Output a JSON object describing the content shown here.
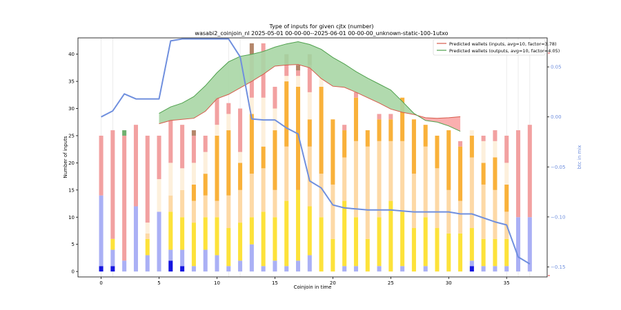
{
  "chart_data": {
    "type": "bar",
    "title": "Type of inputs for given cjtx (number)",
    "subtitle": "wasabi2_coinjoin_nl 2025-05-01 00-00-00--2025-06-01 00-00-00_unknown-static-100-1utxo",
    "xlabel": "Coinjoin in time",
    "ylabel": "Number of inputs",
    "ylabel_right": "btc in mix",
    "xlim": [
      -2,
      38.5
    ],
    "ylim": [
      -1,
      43
    ],
    "ylim_right": [
      -0.16,
      0.079
    ],
    "x_ticks": [
      0,
      5,
      10,
      15,
      20,
      25,
      30,
      35
    ],
    "y_ticks": [
      0,
      5,
      10,
      15,
      20,
      25,
      30,
      35,
      40
    ],
    "y_ticks_right": [
      -0.15,
      -0.1,
      -0.05,
      0.0,
      0.05
    ],
    "y_tick_labels_right": [
      "−0.15",
      "−0.10",
      "−0.05",
      "0.00",
      "0.05"
    ],
    "legend_position": "top-right",
    "grid": "vertical lines at selected coinjoins",
    "colors": {
      "blue_dark": "#1515e0",
      "blue_light": "#aab0f5",
      "yellow": "#fde23a",
      "peach": "#fdd9a6",
      "orange": "#f9b13a",
      "cream": "#fdf0dc",
      "pink": "#f2a1a1",
      "green_bar": "#6fb06f",
      "brown_bar": "#b4866a",
      "line_blue": "#6f8fde",
      "band_green": "#a9d6a5",
      "band_green_edge": "#4ea04c",
      "band_red": "#f9a6a6",
      "band_red_edge": "#d65a4a"
    },
    "stack_order": [
      "blue_dark",
      "blue_light",
      "yellow",
      "peach",
      "orange",
      "cream",
      "pink",
      "green_bar",
      "brown_bar"
    ],
    "bars": [
      {
        "x": 0,
        "s": [
          1,
          13,
          0,
          0,
          0,
          0,
          11,
          0,
          0
        ]
      },
      {
        "x": 1,
        "s": [
          1,
          3,
          2,
          0,
          0,
          0,
          20,
          0,
          0
        ]
      },
      {
        "x": 2,
        "s": [
          0,
          2,
          0,
          0,
          0,
          0,
          23,
          1,
          0
        ]
      },
      {
        "x": 3,
        "s": [
          0,
          12,
          0,
          0,
          0,
          0,
          15,
          0,
          0
        ]
      },
      {
        "x": 4,
        "s": [
          0,
          3,
          3,
          1,
          0,
          2,
          16,
          0,
          0
        ]
      },
      {
        "x": 5,
        "s": [
          0,
          11,
          0,
          0,
          0,
          6,
          8,
          0,
          0
        ]
      },
      {
        "x": 6,
        "s": [
          2,
          2,
          7,
          3,
          0,
          6,
          8,
          0,
          0
        ]
      },
      {
        "x": 7,
        "s": [
          1,
          3,
          6,
          5,
          0,
          4,
          8,
          0,
          0
        ]
      },
      {
        "x": 8,
        "s": [
          0,
          1,
          8,
          4,
          3,
          4,
          5,
          0,
          1
        ]
      },
      {
        "x": 9,
        "s": [
          0,
          4,
          6,
          4,
          4,
          4,
          3,
          0,
          0
        ]
      },
      {
        "x": 10,
        "s": [
          0,
          3,
          7,
          3,
          12,
          2,
          5,
          0,
          0
        ]
      },
      {
        "x": 11,
        "s": [
          0,
          1,
          7,
          6,
          12,
          3,
          2,
          0,
          0
        ]
      },
      {
        "x": 12,
        "s": [
          0,
          2,
          7,
          6,
          5,
          2,
          8,
          0,
          0
        ]
      },
      {
        "x": 13,
        "s": [
          0,
          5,
          5,
          8,
          11,
          3,
          8,
          0,
          2
        ]
      },
      {
        "x": 14,
        "s": [
          0,
          1,
          10,
          8,
          4,
          9,
          10,
          0,
          0
        ]
      },
      {
        "x": 15,
        "s": [
          0,
          2,
          8,
          5,
          11,
          4,
          4,
          0,
          0
        ]
      },
      {
        "x": 16,
        "s": [
          0,
          1,
          12,
          10,
          12,
          1,
          2,
          0,
          2
        ]
      },
      {
        "x": 17,
        "s": [
          0,
          2,
          13,
          0,
          19,
          2,
          1,
          0,
          1
        ]
      },
      {
        "x": 18,
        "s": [
          0,
          3,
          9,
          11,
          5,
          5,
          5,
          0,
          2
        ]
      },
      {
        "x": 19,
        "s": [
          0,
          0,
          10,
          8,
          16,
          3,
          0,
          0,
          0
        ]
      },
      {
        "x": 20,
        "s": [
          0,
          0,
          6,
          10,
          12,
          0,
          0,
          0,
          0
        ]
      },
      {
        "x": 21,
        "s": [
          0,
          1,
          12,
          8,
          5,
          0,
          1,
          0,
          0
        ]
      },
      {
        "x": 22,
        "s": [
          0,
          1,
          9,
          14,
          8,
          0,
          1,
          0,
          0
        ]
      },
      {
        "x": 23,
        "s": [
          0,
          0,
          6,
          17,
          3,
          0,
          0,
          0,
          0
        ]
      },
      {
        "x": 24,
        "s": [
          0,
          1,
          9,
          14,
          4,
          0,
          1,
          0,
          0
        ]
      },
      {
        "x": 25,
        "s": [
          0,
          0,
          13,
          11,
          4,
          0,
          1,
          0,
          0
        ]
      },
      {
        "x": 26,
        "s": [
          0,
          1,
          10,
          13,
          8,
          0,
          0,
          0,
          0
        ]
      },
      {
        "x": 27,
        "s": [
          0,
          0,
          8,
          10,
          10,
          0,
          0,
          0,
          0
        ]
      },
      {
        "x": 28,
        "s": [
          0,
          1,
          9,
          13,
          4,
          0,
          0,
          0,
          0
        ]
      },
      {
        "x": 29,
        "s": [
          0,
          0,
          8,
          11,
          6,
          0,
          0,
          0,
          0
        ]
      },
      {
        "x": 30,
        "s": [
          0,
          0,
          7,
          8,
          11,
          0,
          0,
          0,
          0
        ]
      },
      {
        "x": 31,
        "s": [
          0,
          0,
          7,
          6,
          10,
          0,
          1,
          0,
          0
        ]
      },
      {
        "x": 32,
        "s": [
          1,
          1,
          6,
          13,
          4,
          1,
          0,
          0,
          0
        ]
      },
      {
        "x": 33,
        "s": [
          0,
          1,
          5,
          10,
          4,
          4,
          1,
          0,
          0
        ]
      },
      {
        "x": 34,
        "s": [
          0,
          1,
          5,
          9,
          6,
          3,
          2,
          0,
          0
        ]
      },
      {
        "x": 35,
        "s": [
          0,
          1,
          5,
          5,
          5,
          4,
          5,
          0,
          0
        ]
      },
      {
        "x": 36,
        "s": [
          0,
          10,
          0,
          0,
          0,
          0,
          16,
          0,
          0
        ]
      },
      {
        "x": 37,
        "s": [
          0,
          10,
          0,
          0,
          0,
          0,
          17,
          0,
          0
        ]
      }
    ],
    "vertical_grid_x": [
      0,
      1,
      11,
      12,
      35,
      36,
      37
    ],
    "btc_in_mix": {
      "x": [
        0,
        1,
        2,
        3,
        4,
        5,
        6,
        7,
        8,
        9,
        10,
        11,
        12,
        13,
        14,
        15,
        16,
        17,
        18,
        19,
        20,
        21,
        22,
        23,
        24,
        25,
        26,
        27,
        28,
        29,
        30,
        31,
        32,
        33,
        34,
        35,
        36,
        37
      ],
      "y": [
        0.0,
        0.006,
        0.023,
        0.018,
        0.018,
        0.018,
        0.076,
        0.078,
        0.078,
        0.078,
        0.078,
        0.078,
        0.06,
        -0.002,
        -0.003,
        -0.003,
        -0.011,
        -0.017,
        -0.064,
        -0.071,
        -0.088,
        -0.091,
        -0.092,
        -0.093,
        -0.093,
        -0.093,
        -0.094,
        -0.095,
        -0.095,
        -0.095,
        -0.095,
        -0.097,
        -0.097,
        -0.101,
        -0.105,
        -0.108,
        -0.14,
        -0.147
      ]
    },
    "series": [
      {
        "name": "Predicted wallets (inputs, avg=10, factor=3.78)",
        "x": [
          5,
          6,
          7,
          8,
          9,
          10,
          11,
          12,
          13,
          14,
          15,
          16,
          17,
          18,
          19,
          20,
          21,
          22,
          23,
          24,
          25,
          26,
          27,
          28,
          29,
          30,
          31
        ],
        "y": [
          27.2,
          27.8,
          28.0,
          28.2,
          29.5,
          31.8,
          32.6,
          33.8,
          35.0,
          36.3,
          37.8,
          38.0,
          38.1,
          37.5,
          35.5,
          34.1,
          33.9,
          33.0,
          32.0,
          31.0,
          29.9,
          29.3,
          28.9,
          28.3,
          28.2,
          28.3,
          28.5
        ]
      },
      {
        "name": "Predicted wallets (outputs, avg=10, factor=4.05)",
        "x": [
          5,
          6,
          7,
          8,
          9,
          10,
          11,
          12,
          13,
          14,
          15,
          16,
          17,
          18,
          19,
          20,
          21,
          22,
          23,
          24,
          25,
          26,
          27,
          28,
          29,
          30,
          31
        ],
        "y": [
          29.1,
          30.3,
          31.0,
          32.2,
          34.2,
          36.6,
          38.6,
          39.6,
          40.0,
          40.5,
          41.3,
          41.9,
          42.3,
          41.8,
          40.9,
          39.4,
          38.2,
          36.8,
          35.6,
          34.5,
          33.4,
          31.3,
          29.1,
          27.8,
          27.5,
          26.8,
          25.8
        ]
      }
    ]
  }
}
